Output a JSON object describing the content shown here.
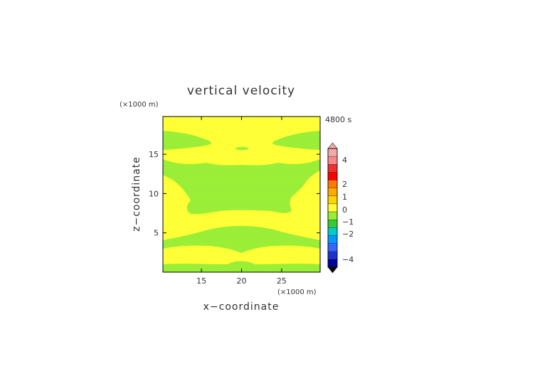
{
  "chart_data": {
    "type": "heatmap",
    "title": "vertical velocity",
    "xlabel": "x−coordinate",
    "ylabel": "z−coordinate",
    "x_unit": "(×1000 m)",
    "y_unit": "(×1000 m)",
    "time_label": "4800 s",
    "xlim": [
      10.2,
      29.8
    ],
    "ylim": [
      0,
      19.8
    ],
    "x_ticks": [
      15,
      20,
      25
    ],
    "y_ticks": [
      5,
      10,
      15
    ],
    "colorbar": {
      "tick_labels": [
        "4",
        "2",
        "1",
        "0",
        "−1",
        "−2",
        "−4"
      ],
      "levels": [
        {
          "color": "#f4a9a9"
        },
        {
          "color": "#f48a8a"
        },
        {
          "color": "#f03030"
        },
        {
          "color": "#ff0000"
        },
        {
          "color": "#ff7a00"
        },
        {
          "color": "#ffaa00"
        },
        {
          "color": "#ffd400"
        },
        {
          "color": "#ffff33"
        },
        {
          "color": "#99ee33"
        },
        {
          "color": "#33cc33"
        },
        {
          "color": "#00cccc"
        },
        {
          "color": "#0099ff"
        },
        {
          "color": "#3366ff"
        },
        {
          "color": "#1a33cc"
        },
        {
          "color": "#000099"
        }
      ]
    },
    "field": {
      "background_value_range": "0 to 0.5",
      "background_color": "#ffff33",
      "regions": [
        {
          "value_range": "-0.5 to 0",
          "color": "#99ee33",
          "description": "upper wings near z 17-18"
        },
        {
          "value_range": "-0.5 to 0",
          "color": "#99ee33",
          "description": "small cell near x 20, z 16"
        },
        {
          "value_range": "-0.5 to 0",
          "color": "#99ee33",
          "description": "broad band z 8-14 with lobes"
        },
        {
          "value_range": "-0.5 to 0",
          "color": "#99ee33",
          "description": "band z 3-6"
        },
        {
          "value_range": "-0.5 to 0",
          "color": "#99ee33",
          "description": "bottom strip z 0-1"
        }
      ]
    }
  }
}
